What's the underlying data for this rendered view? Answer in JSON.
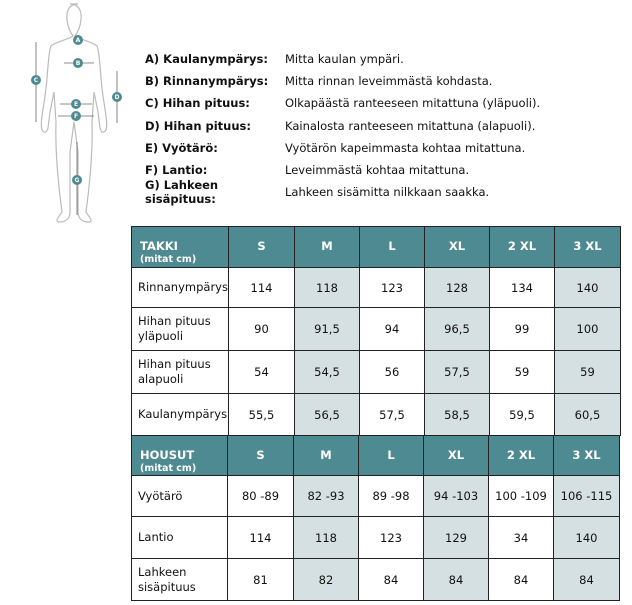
{
  "figure": {
    "markers": [
      "A",
      "B",
      "C",
      "D",
      "E",
      "F",
      "G"
    ],
    "accent": "#4e8a91"
  },
  "legend": [
    {
      "key": "A) Kaulanympärys:",
      "desc": "Mitta kaulan ympäri."
    },
    {
      "key": "B) Rinnanympärys:",
      "desc": "Mitta rinnan leveimmästä kohdasta."
    },
    {
      "key": "C) Hihan pituus:",
      "desc": "Olkapäästä ranteeseen mitattuna (yläpuoli)."
    },
    {
      "key": "D) Hihan pituus:",
      "desc": "Kainalosta ranteeseen mitattuna (alapuoli)."
    },
    {
      "key": "E) Vyötärö:",
      "desc": "Vyötärön kapeimmasta kohtaa mitattuna."
    },
    {
      "key": "F) Lantio:",
      "desc": "Leveimmästä kohtaa mitattuna."
    },
    {
      "key": "G) Lahkeen sisäpituus:",
      "desc": "Lahkeen sisämitta nilkkaan saakka."
    }
  ],
  "tables": [
    {
      "title": "TAKKI",
      "unit": "(mitat cm)",
      "sizes": [
        "S",
        "M",
        "L",
        "XL",
        "2 XL",
        "3 XL"
      ],
      "rows": [
        {
          "name": "Rinnanympärys",
          "values": [
            "114",
            "118",
            "123",
            "128",
            "134",
            "140"
          ]
        },
        {
          "name": "Hihan pituus yläpuoli",
          "values": [
            "90",
            "91,5",
            "94",
            "96,5",
            "99",
            "100"
          ]
        },
        {
          "name": "Hihan pituus alapuoli",
          "values": [
            "54",
            "54,5",
            "56",
            "57,5",
            "59",
            "59"
          ]
        },
        {
          "name": "Kaulanympärys",
          "values": [
            "55,5",
            "56,5",
            "57,5",
            "58,5",
            "59,5",
            "60,5"
          ]
        }
      ]
    },
    {
      "title": "HOUSUT",
      "unit": "(mitat cm)",
      "sizes": [
        "S",
        "M",
        "L",
        "XL",
        "2 XL",
        "3 XL"
      ],
      "rows": [
        {
          "name": "Vyötärö",
          "values": [
            "80 -89",
            "82 -93",
            "89 -98",
            "94 -103",
            "100 -109",
            "106 -115"
          ]
        },
        {
          "name": "Lantio",
          "values": [
            "114",
            "118",
            "123",
            "129",
            "34",
            "140"
          ]
        },
        {
          "name": "Lahkeen sisäpituus",
          "values": [
            "81",
            "82",
            "84",
            "84",
            "84",
            "84"
          ]
        }
      ]
    }
  ]
}
